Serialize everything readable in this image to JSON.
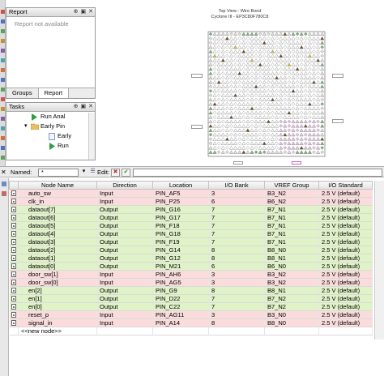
{
  "report_panel": {
    "title": "Report",
    "message": "Report not available",
    "tabs": [
      {
        "label": "Groups",
        "active": false
      },
      {
        "label": "Report",
        "active": true
      }
    ]
  },
  "tasks_panel": {
    "title": "Tasks",
    "items": [
      {
        "label": "Run Anal",
        "icon": "play-icon"
      },
      {
        "label": "Early Pin",
        "icon": "folder-icon"
      },
      {
        "label": "Early",
        "icon": "document-icon"
      },
      {
        "label": "Run",
        "icon": "play-icon"
      }
    ]
  },
  "chip_view": {
    "title_line1": "Top View - Wire Bond",
    "title_line2": "Cyclone III - EP3C80F780C8"
  },
  "filter_bar": {
    "named_label": "Named:",
    "named_value": "*",
    "edit_label": "Edit:"
  },
  "table": {
    "headers": [
      "Node Name",
      "Direction",
      "Location",
      "I/O Bank",
      "VREF Group",
      "I/O Standard"
    ],
    "rows": [
      {
        "name": "auto_sw",
        "direction": "Input",
        "location": "PIN_AF5",
        "bank": "3",
        "vref": "B3_N2",
        "standard": "2.5 V (default)",
        "kind": "in"
      },
      {
        "name": "clk_in",
        "direction": "Input",
        "location": "PIN_P25",
        "bank": "6",
        "vref": "B6_N2",
        "standard": "2.5 V (default)",
        "kind": "in"
      },
      {
        "name": "dataout[7]",
        "direction": "Output",
        "location": "PIN_G16",
        "bank": "7",
        "vref": "B7_N1",
        "standard": "2.5 V (default)",
        "kind": "out"
      },
      {
        "name": "dataout[6]",
        "direction": "Output",
        "location": "PIN_G17",
        "bank": "7",
        "vref": "B7_N1",
        "standard": "2.5 V (default)",
        "kind": "out"
      },
      {
        "name": "dataout[5]",
        "direction": "Output",
        "location": "PIN_F18",
        "bank": "7",
        "vref": "B7_N1",
        "standard": "2.5 V (default)",
        "kind": "out"
      },
      {
        "name": "dataout[4]",
        "direction": "Output",
        "location": "PIN_G18",
        "bank": "7",
        "vref": "B7_N1",
        "standard": "2.5 V (default)",
        "kind": "out"
      },
      {
        "name": "dataout[3]",
        "direction": "Output",
        "location": "PIN_F19",
        "bank": "7",
        "vref": "B7_N1",
        "standard": "2.5 V (default)",
        "kind": "out"
      },
      {
        "name": "dataout[2]",
        "direction": "Output",
        "location": "PIN_G14",
        "bank": "8",
        "vref": "B8_N0",
        "standard": "2.5 V (default)",
        "kind": "out"
      },
      {
        "name": "dataout[1]",
        "direction": "Output",
        "location": "PIN_G12",
        "bank": "8",
        "vref": "B8_N1",
        "standard": "2.5 V (default)",
        "kind": "out"
      },
      {
        "name": "dataout[0]",
        "direction": "Output",
        "location": "PIN_M21",
        "bank": "6",
        "vref": "B6_N0",
        "standard": "2.5 V (default)",
        "kind": "out"
      },
      {
        "name": "door_sw[1]",
        "direction": "Input",
        "location": "PIN_AH6",
        "bank": "3",
        "vref": "B3_N2",
        "standard": "2.5 V (default)",
        "kind": "in"
      },
      {
        "name": "door_sw[0]",
        "direction": "Input",
        "location": "PIN_AG5",
        "bank": "3",
        "vref": "B3_N2",
        "standard": "2.5 V (default)",
        "kind": "in"
      },
      {
        "name": "en[2]",
        "direction": "Output",
        "location": "PIN_G9",
        "bank": "8",
        "vref": "B8_N1",
        "standard": "2.5 V (default)",
        "kind": "out"
      },
      {
        "name": "en[1]",
        "direction": "Output",
        "location": "PIN_D22",
        "bank": "7",
        "vref": "B7_N2",
        "standard": "2.5 V (default)",
        "kind": "out"
      },
      {
        "name": "en[0]",
        "direction": "Output",
        "location": "PIN_C22",
        "bank": "7",
        "vref": "B7_N2",
        "standard": "2.5 V (default)",
        "kind": "out"
      },
      {
        "name": "reset_p",
        "direction": "Input",
        "location": "PIN_AG11",
        "bank": "3",
        "vref": "B3_N0",
        "standard": "2.5 V (default)",
        "kind": "in"
      },
      {
        "name": "signal_in",
        "direction": "Input",
        "location": "PIN_A14",
        "bank": "8",
        "vref": "B8_N0",
        "standard": "2.5 V (default)",
        "kind": "in"
      }
    ],
    "new_node": "<<new node>>"
  },
  "colors": {
    "input_row": "#fadcdc",
    "output_row": "#e0f2c8",
    "bidir_row": "#fffbd4"
  }
}
